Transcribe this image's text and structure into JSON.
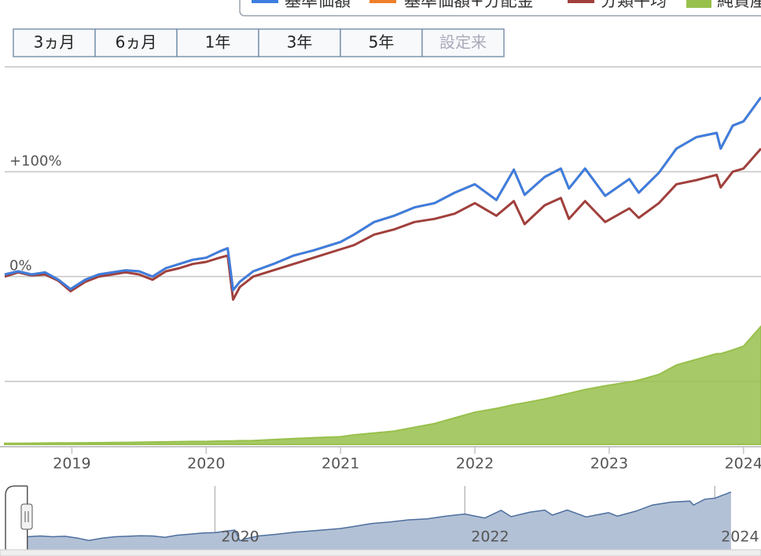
{
  "chart_data": {
    "type": "line",
    "legend": {
      "position": "top"
    },
    "range_buttons": [
      {
        "label": "3ヵ月",
        "enabled": true
      },
      {
        "label": "6ヵ月",
        "enabled": true
      },
      {
        "label": "1年",
        "enabled": true
      },
      {
        "label": "3年",
        "enabled": true
      },
      {
        "label": "5年",
        "enabled": true
      },
      {
        "label": "設定来",
        "enabled": false
      }
    ],
    "x": [
      2018.5,
      2018.6,
      2018.7,
      2018.8,
      2018.9,
      2018.99,
      2019.1,
      2019.2,
      2019.3,
      2019.4,
      2019.5,
      2019.6,
      2019.7,
      2019.8,
      2019.9,
      2020.0,
      2020.1,
      2020.16,
      2020.2,
      2020.25,
      2020.35,
      2020.5,
      2020.65,
      2020.8,
      2021.0,
      2021.1,
      2021.25,
      2021.4,
      2021.55,
      2021.7,
      2021.85,
      2022.0,
      2022.16,
      2022.29,
      2022.37,
      2022.52,
      2022.64,
      2022.7,
      2022.82,
      2022.97,
      2023.15,
      2023.22,
      2023.37,
      2023.5,
      2023.65,
      2023.8,
      2023.83,
      2023.92,
      2024.0,
      2024.13
    ],
    "series": [
      {
        "name": "基準価額+分配金",
        "color": "#f07f2a",
        "type": "line",
        "values": [
          2,
          5,
          2,
          4,
          -3,
          -12,
          -3,
          2,
          4,
          6,
          5,
          0,
          8,
          12,
          16,
          18,
          24,
          27,
          -13,
          -5,
          5,
          12,
          20,
          25,
          33,
          40,
          52,
          58,
          66,
          70,
          80,
          88,
          73,
          102,
          78,
          95,
          103,
          84,
          103,
          77,
          93,
          80,
          99,
          122,
          133,
          137,
          122,
          144,
          148,
          171
        ]
      },
      {
        "name": "分類平均",
        "color": "#a0403c",
        "type": "line",
        "values": [
          0,
          4,
          1,
          2,
          -4,
          -14,
          -5,
          0,
          2,
          4,
          2,
          -3,
          5,
          8,
          12,
          14,
          18,
          20,
          -22,
          -10,
          0,
          6,
          12,
          18,
          26,
          30,
          40,
          45,
          52,
          55,
          60,
          70,
          58,
          72,
          50,
          68,
          75,
          55,
          72,
          52,
          65,
          56,
          70,
          88,
          92,
          97,
          85,
          100,
          103,
          122
        ]
      },
      {
        "name": "基準価額",
        "color": "#3d7ee0",
        "type": "line",
        "values": [
          2,
          5,
          2,
          4,
          -3,
          -12,
          -3,
          2,
          4,
          6,
          5,
          0,
          8,
          12,
          16,
          18,
          24,
          27,
          -13,
          -5,
          5,
          12,
          20,
          25,
          33,
          40,
          52,
          58,
          66,
          70,
          80,
          88,
          73,
          102,
          78,
          95,
          103,
          84,
          103,
          77,
          93,
          80,
          99,
          122,
          133,
          137,
          122,
          144,
          148,
          171
        ]
      },
      {
        "name": "純資産",
        "color": "#98c04c",
        "type": "area",
        "axis": "y2",
        "values": [
          0.5,
          0.55,
          0.6,
          0.65,
          0.7,
          0.75,
          0.8,
          0.85,
          0.9,
          1,
          1.1,
          1.2,
          1.3,
          1.4,
          1.5,
          1.5,
          1.7,
          1.8,
          1.8,
          1.9,
          2,
          2.5,
          3,
          3.5,
          4,
          5,
          6,
          7,
          9,
          11,
          14,
          17,
          19,
          21,
          22,
          24,
          26,
          27,
          29,
          31,
          33,
          34,
          37,
          42,
          45,
          48,
          48,
          50,
          52,
          62.5
        ]
      }
    ],
    "xlim": [
      2018.5,
      2024.13
    ],
    "xticks": [
      2019,
      2020,
      2021,
      2022,
      2023,
      2024
    ],
    "ylim": [
      -160,
      200
    ],
    "yticks": [
      {
        "value": -100,
        "label": null
      },
      {
        "value": 0,
        "label": "0%"
      },
      {
        "value": 100,
        "label": "+100%"
      },
      {
        "value": 200,
        "label": null
      }
    ],
    "y2lim": [
      0,
      200
    ],
    "grid": true,
    "navigator": {
      "series_index": 2,
      "xlim": [
        2018.5,
        2024.37
      ],
      "ylim": [
        -47,
        194
      ],
      "xticks": [
        2020,
        2022,
        2024
      ]
    }
  }
}
